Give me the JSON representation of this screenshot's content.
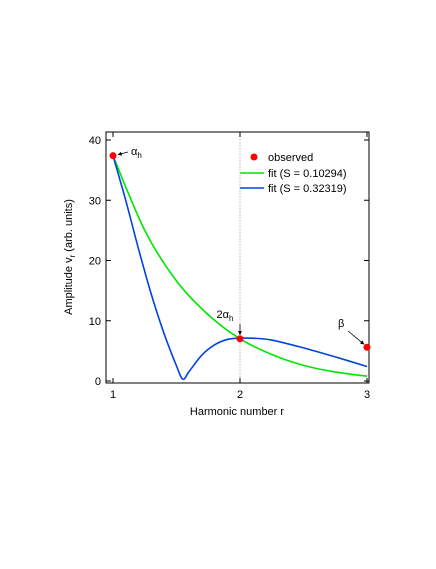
{
  "chart_data": {
    "type": "line",
    "xlabel": "Harmonic number r",
    "ylabel_main": "Amplitude v",
    "ylabel_sub": "r",
    "ylabel_tail": " (arb. units)",
    "xlim": [
      1,
      3
    ],
    "ylim": [
      0,
      40
    ],
    "x_ticks": [
      1,
      2,
      3
    ],
    "x_tick_labels": [
      "1",
      "2",
      "3"
    ],
    "y_ticks": [
      0,
      10,
      20,
      30,
      40
    ],
    "y_tick_labels": [
      "0",
      "10",
      "20",
      "30",
      "40"
    ],
    "vertical_reference_line_x": 2,
    "legend_position": "top-right",
    "observed": {
      "name": "observed",
      "color": "#ff0000",
      "points": [
        {
          "x": 1,
          "y": 37.4
        },
        {
          "x": 2,
          "y": 7.0
        },
        {
          "x": 3,
          "y": 5.6
        }
      ]
    },
    "series": [
      {
        "name": "fit (S = 0.10294)",
        "color": "#00e600",
        "x": [
          1.0,
          1.25,
          1.5,
          1.75,
          2.0,
          2.25,
          2.5,
          2.75,
          3.0
        ],
        "y": [
          37.4,
          25.0,
          16.6,
          11.0,
          7.0,
          4.4,
          2.6,
          1.5,
          0.8
        ]
      },
      {
        "name": "fit (S = 0.32319)",
        "color": "#0044dd",
        "x": [
          1.0,
          1.1,
          1.2,
          1.3,
          1.4,
          1.5,
          1.55,
          1.6,
          1.7,
          1.8,
          1.9,
          2.0,
          2.1,
          2.25,
          2.5,
          2.75,
          3.0
        ],
        "y": [
          37.4,
          30.0,
          22.0,
          14.5,
          8.0,
          2.5,
          0.3,
          1.6,
          4.3,
          6.0,
          6.9,
          7.1,
          7.1,
          6.8,
          5.5,
          4.0,
          2.4
        ]
      }
    ],
    "annotations": [
      {
        "base": "α",
        "sub": "h",
        "x": 1,
        "y": 37.4
      },
      {
        "base": "2α",
        "sub": "h",
        "x": 2,
        "y": 7.0
      },
      {
        "base": "β",
        "sub": "",
        "x": 3,
        "y": 5.6
      }
    ]
  }
}
